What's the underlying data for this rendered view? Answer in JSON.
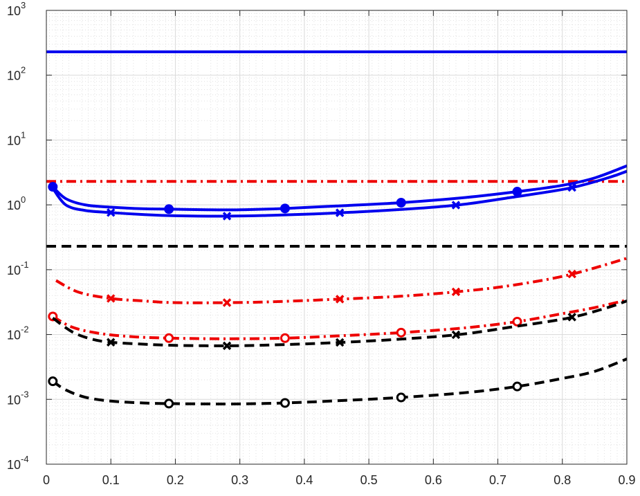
{
  "chart_data": {
    "type": "line",
    "title": "",
    "xlabel": "",
    "ylabel": "",
    "xlim": [
      0,
      0.9
    ],
    "ylim": [
      0.0001,
      1000
    ],
    "yscale": "log",
    "grid": true,
    "minor_grid": true,
    "x_ticks": [
      "0",
      "0.1",
      "0.2",
      "0.3",
      "0.4",
      "0.5",
      "0.6",
      "0.7",
      "0.8",
      "0.9"
    ],
    "y_ticks": [
      {
        "base": "10",
        "exp": "-4"
      },
      {
        "base": "10",
        "exp": "-3"
      },
      {
        "base": "10",
        "exp": "-2"
      },
      {
        "base": "10",
        "exp": "-1"
      },
      {
        "base": "10",
        "exp": "0"
      },
      {
        "base": "10",
        "exp": "1"
      },
      {
        "base": "10",
        "exp": "2"
      },
      {
        "base": "10",
        "exp": "3"
      }
    ],
    "colors": {
      "blue": "#0000ee",
      "red": "#ee0000",
      "black": "#000000",
      "grid": "#d9d9d9"
    },
    "series": [
      {
        "color": "blue",
        "style": "solid",
        "marker": "none",
        "x": [
          0,
          0.9
        ],
        "y": [
          230,
          230
        ]
      },
      {
        "color": "red",
        "style": "dashdot",
        "marker": "none",
        "x": [
          0,
          0.9
        ],
        "y": [
          2.3,
          2.3
        ]
      },
      {
        "color": "black",
        "style": "dashed",
        "marker": "none",
        "x": [
          0,
          0.9
        ],
        "y": [
          0.23,
          0.23
        ]
      },
      {
        "color": "blue",
        "style": "solid",
        "marker": "circle-filled",
        "x": [
          0.01,
          0.03,
          0.06,
          0.1,
          0.15,
          0.19,
          0.25,
          0.3,
          0.37,
          0.45,
          0.55,
          0.65,
          0.73,
          0.8,
          0.85,
          0.9
        ],
        "y": [
          1.9,
          1.25,
          1.0,
          0.92,
          0.87,
          0.86,
          0.84,
          0.84,
          0.88,
          0.96,
          1.08,
          1.3,
          1.6,
          2.0,
          2.6,
          4.0
        ],
        "markers_x": [
          0.01,
          0.19,
          0.37,
          0.55,
          0.73
        ]
      },
      {
        "color": "blue",
        "style": "solid",
        "marker": "x",
        "x": [
          0.01,
          0.03,
          0.06,
          0.1,
          0.15,
          0.2,
          0.28,
          0.35,
          0.45,
          0.55,
          0.64,
          0.72,
          0.81,
          0.87,
          0.9
        ],
        "y": [
          1.8,
          1.0,
          0.82,
          0.76,
          0.71,
          0.68,
          0.67,
          0.69,
          0.75,
          0.85,
          1.0,
          1.3,
          1.8,
          2.6,
          3.3
        ],
        "markers_x": [
          0.1,
          0.28,
          0.455,
          0.635,
          0.815
        ]
      },
      {
        "color": "red",
        "style": "dashdot",
        "marker": "x",
        "x": [
          0.015,
          0.05,
          0.1,
          0.15,
          0.2,
          0.28,
          0.35,
          0.45,
          0.55,
          0.64,
          0.72,
          0.81,
          0.9
        ],
        "y": [
          0.068,
          0.045,
          0.036,
          0.033,
          0.031,
          0.031,
          0.032,
          0.035,
          0.039,
          0.046,
          0.057,
          0.083,
          0.15
        ],
        "markers_x": [
          0.1,
          0.28,
          0.455,
          0.635,
          0.815
        ]
      },
      {
        "color": "red",
        "style": "dashdot",
        "marker": "circle-open",
        "x": [
          0.01,
          0.04,
          0.08,
          0.13,
          0.19,
          0.28,
          0.37,
          0.45,
          0.55,
          0.65,
          0.73,
          0.8,
          0.85,
          0.9
        ],
        "y": [
          0.019,
          0.013,
          0.0105,
          0.0093,
          0.0088,
          0.0086,
          0.0088,
          0.0095,
          0.0107,
          0.0127,
          0.0158,
          0.021,
          0.026,
          0.034
        ],
        "markers_x": [
          0.01,
          0.19,
          0.37,
          0.55,
          0.73
        ]
      },
      {
        "color": "black",
        "style": "dashed",
        "marker": "x",
        "x": [
          0.01,
          0.04,
          0.07,
          0.1,
          0.15,
          0.2,
          0.28,
          0.35,
          0.45,
          0.55,
          0.64,
          0.72,
          0.81,
          0.87,
          0.9
        ],
        "y": [
          0.018,
          0.011,
          0.0085,
          0.0076,
          0.0071,
          0.0068,
          0.0067,
          0.0069,
          0.0075,
          0.0085,
          0.01,
          0.013,
          0.018,
          0.026,
          0.033
        ],
        "markers_x": [
          0.1,
          0.28,
          0.455,
          0.635,
          0.815
        ]
      },
      {
        "color": "black",
        "style": "dashed",
        "marker": "circle-open",
        "x": [
          0.01,
          0.03,
          0.06,
          0.1,
          0.15,
          0.19,
          0.25,
          0.3,
          0.37,
          0.45,
          0.55,
          0.65,
          0.73,
          0.8,
          0.85,
          0.9
        ],
        "y": [
          0.0019,
          0.0014,
          0.00108,
          0.00094,
          0.00088,
          0.00086,
          0.00085,
          0.00085,
          0.00088,
          0.00095,
          0.00107,
          0.00127,
          0.00158,
          0.0021,
          0.0027,
          0.0042
        ],
        "markers_x": [
          0.01,
          0.19,
          0.37,
          0.55,
          0.73
        ]
      }
    ]
  }
}
